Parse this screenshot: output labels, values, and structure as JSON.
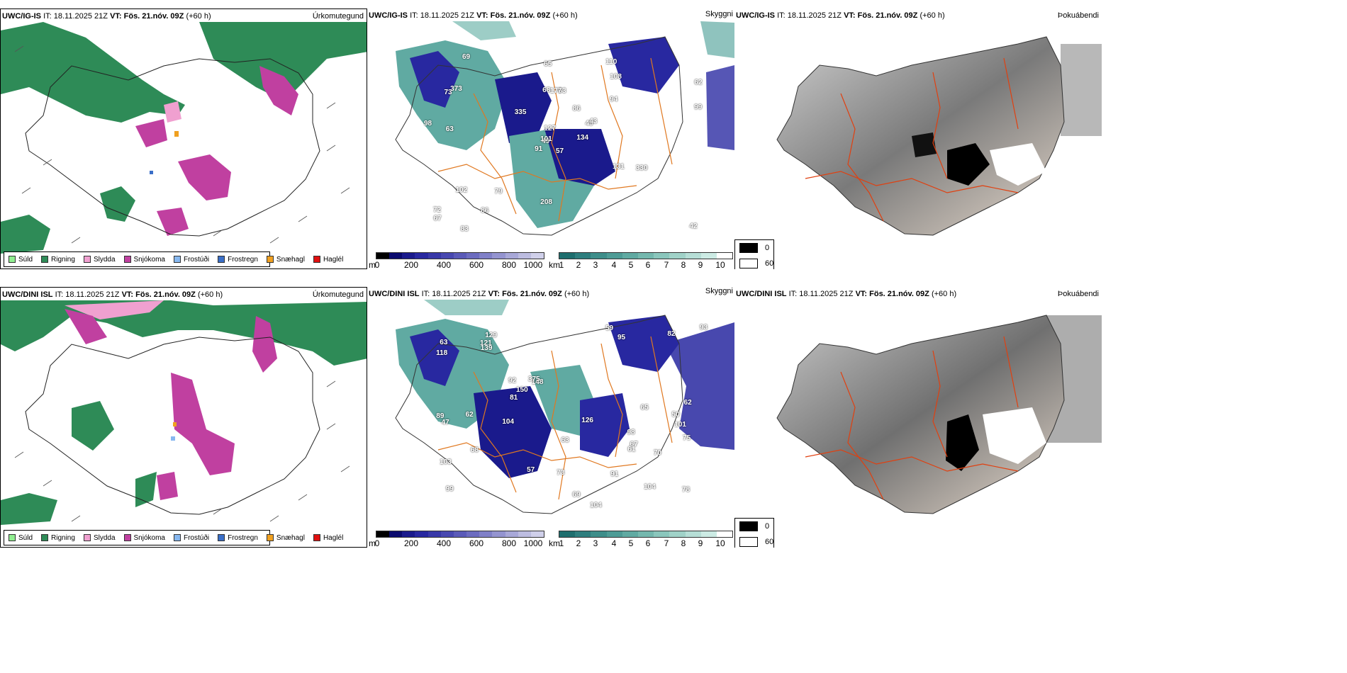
{
  "panels": {
    "top_left": {
      "model": "UWC/IG-IS",
      "it_label": "IT:",
      "it": "18.11.2025 21Z",
      "vt_label": "VT:",
      "vt": "Fös. 21.nóv. 09Z",
      "lead": "(+60 h)",
      "title": "Úrkomutegund"
    },
    "top_mid": {
      "model": "UWC/IG-IS",
      "it_label": "IT:",
      "it": "18.11.2025 21Z",
      "vt_label": "VT:",
      "vt": "Fös. 21.nóv. 09Z",
      "lead": "(+60 h)",
      "title": "Skyggni"
    },
    "top_right": {
      "model": "UWC/IG-IS",
      "it_label": "IT:",
      "it": "18.11.2025 21Z",
      "vt_label": "VT:",
      "vt": "Fös. 21.nóv. 09Z",
      "lead": "(+60 h)",
      "title": "Þokuábendi"
    },
    "bot_left": {
      "model": "UWC/DINI ISL",
      "it_label": "IT:",
      "it": "18.11.2025 21Z",
      "vt_label": "VT:",
      "vt": "Fös. 21.nóv. 09Z",
      "lead": "(+60 h)",
      "title": "Úrkomutegund"
    },
    "bot_mid": {
      "model": "UWC/DINI ISL",
      "it_label": "IT:",
      "it": "18.11.2025 21Z",
      "vt_label": "VT:",
      "vt": "Fös. 21.nóv. 09Z",
      "lead": "(+60 h)",
      "title": "Skyggni"
    },
    "bot_right": {
      "model": "UWC/DINI ISL",
      "it_label": "IT:",
      "it": "18.11.2025 21Z",
      "vt_label": "VT:",
      "vt": "Fös. 21.nóv. 09Z",
      "lead": "(+60 h)",
      "title": "Þokuábendi"
    }
  },
  "precip_legend": [
    {
      "label": "Súld",
      "color": "#90ee90"
    },
    {
      "label": "Rigning",
      "color": "#2e8b57"
    },
    {
      "label": "Slydda",
      "color": "#f0a0d0"
    },
    {
      "label": "Snjókoma",
      "color": "#c040a0"
    },
    {
      "label": "Frostúði",
      "color": "#87b8f0"
    },
    {
      "label": "Frostregn",
      "color": "#3a6fc8"
    },
    {
      "label": "Snæhagl",
      "color": "#f0a020"
    },
    {
      "label": "Haglél",
      "color": "#e01010"
    }
  ],
  "ceiling_scale": {
    "unit": "m",
    "ticks": [
      "0",
      "200",
      "400",
      "600",
      "800",
      "1000"
    ],
    "colors": [
      "#000000",
      "#0a0a6e",
      "#1a1a8c",
      "#2828a0",
      "#3838a8",
      "#4848b0",
      "#5a5ab8",
      "#6c6cc0",
      "#8080c8",
      "#9494d0",
      "#a8a8d8",
      "#bcbce0",
      "#d0d0ea"
    ]
  },
  "visibility_scale": {
    "unit": "km",
    "ticks": [
      "1",
      "2",
      "3",
      "4",
      "5",
      "6",
      "7",
      "8",
      "9",
      "10"
    ],
    "colors": [
      "#1e6e6e",
      "#2e7e7e",
      "#3e8e8a",
      "#4e9c96",
      "#60aaa2",
      "#74b8ae",
      "#8ac6bc",
      "#a0d2c8",
      "#b6ded6",
      "#ccebe4",
      "#ffffff"
    ]
  },
  "fog_legend": [
    {
      "label": "0",
      "color": "#000000"
    },
    {
      "label": "60",
      "color": "#ffffff"
    }
  ],
  "ceiling_labels_top": [
    "57",
    "73",
    "49",
    "72",
    "49",
    "79",
    "110",
    "63",
    "108",
    "134",
    "69",
    "42",
    "63",
    "62",
    "91",
    "94",
    "83",
    "68",
    "86",
    "102",
    "335",
    "67",
    "86",
    "177",
    "43",
    "330",
    "373",
    "65",
    "98",
    "131",
    "99",
    "101",
    "208",
    "127"
  ],
  "ceiling_labels_bottom": [
    "98",
    "101",
    "99",
    "129",
    "148",
    "104",
    "103",
    "95",
    "92",
    "104",
    "118",
    "89",
    "63",
    "78",
    "57",
    "62",
    "63",
    "126",
    "375",
    "68",
    "93",
    "82",
    "81",
    "75",
    "59",
    "121",
    "67",
    "47",
    "139",
    "65",
    "69",
    "91",
    "150",
    "104",
    "50",
    "70",
    "61",
    "62",
    "73"
  ]
}
